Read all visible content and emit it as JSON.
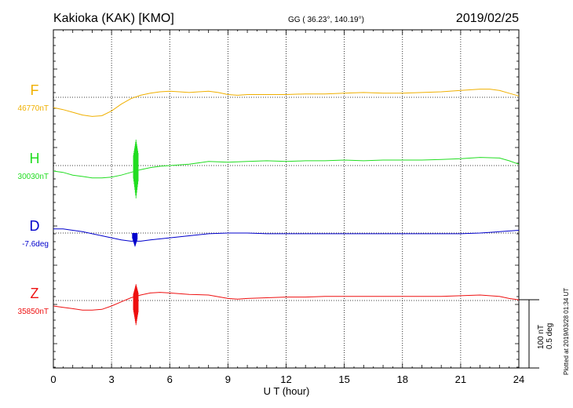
{
  "header": {
    "station": "Kakioka (KAK)  [KMO]",
    "coords": "GG ( 36.23°, 140.19°)",
    "date": "2019/02/25"
  },
  "chart_data": {
    "type": "line",
    "xlabel": "U T (hour)",
    "xlim": [
      0,
      24
    ],
    "xticks": [
      "0",
      "3",
      "6",
      "9",
      "12",
      "15",
      "18",
      "21",
      "24"
    ],
    "scale_labels": [
      "100 nT",
      "0.5 deg"
    ],
    "plotted_note": "Plotted at 2019/03/28 01:34 UT",
    "grid": true,
    "series": [
      {
        "name": "F",
        "baseline": "46770nT",
        "color": "#f0b000",
        "unit": "nT",
        "points": [
          [
            0,
            -15
          ],
          [
            0.5,
            -18
          ],
          [
            1,
            -22
          ],
          [
            1.5,
            -26
          ],
          [
            2,
            -28
          ],
          [
            2.5,
            -27
          ],
          [
            3,
            -20
          ],
          [
            3.5,
            -10
          ],
          [
            4,
            -2
          ],
          [
            4.5,
            3
          ],
          [
            5,
            6
          ],
          [
            5.5,
            8
          ],
          [
            6,
            9
          ],
          [
            6.5,
            8
          ],
          [
            7,
            7
          ],
          [
            7.5,
            8
          ],
          [
            8,
            9
          ],
          [
            8.5,
            7
          ],
          [
            9,
            4
          ],
          [
            9.5,
            3
          ],
          [
            10,
            4
          ],
          [
            10.5,
            4
          ],
          [
            11,
            4
          ],
          [
            12,
            4
          ],
          [
            13,
            5
          ],
          [
            14,
            5
          ],
          [
            15,
            6
          ],
          [
            16,
            7
          ],
          [
            17,
            6
          ],
          [
            18,
            6
          ],
          [
            19,
            7
          ],
          [
            20,
            8
          ],
          [
            21,
            10
          ],
          [
            22,
            12
          ],
          [
            22.5,
            12
          ],
          [
            23,
            10
          ],
          [
            23.5,
            6
          ],
          [
            24,
            2
          ]
        ],
        "spikes": []
      },
      {
        "name": "H",
        "baseline": "30030nT",
        "color": "#22dd22",
        "unit": "nT",
        "points": [
          [
            0,
            -8
          ],
          [
            0.5,
            -10
          ],
          [
            1,
            -14
          ],
          [
            1.5,
            -16
          ],
          [
            2,
            -18
          ],
          [
            2.5,
            -18
          ],
          [
            3,
            -17
          ],
          [
            3.5,
            -14
          ],
          [
            4,
            -10
          ],
          [
            4.5,
            -6
          ],
          [
            5,
            -3
          ],
          [
            5.5,
            -1
          ],
          [
            6,
            0
          ],
          [
            7,
            2
          ],
          [
            8,
            6
          ],
          [
            9,
            5
          ],
          [
            10,
            6
          ],
          [
            11,
            7
          ],
          [
            12,
            6
          ],
          [
            13,
            7
          ],
          [
            14,
            7
          ],
          [
            15,
            8
          ],
          [
            16,
            7
          ],
          [
            17,
            8
          ],
          [
            18,
            8
          ],
          [
            19,
            8
          ],
          [
            20,
            9
          ],
          [
            21,
            10
          ],
          [
            22,
            12
          ],
          [
            23,
            11
          ],
          [
            23.5,
            7
          ],
          [
            24,
            2
          ]
        ],
        "spikes": [
          {
            "x": 4.25,
            "lo": -48,
            "hi": 38
          }
        ]
      },
      {
        "name": "D",
        "baseline": "-7.6deg",
        "color": "#0000cc",
        "unit": "nT",
        "points": [
          [
            0,
            6
          ],
          [
            0.5,
            6
          ],
          [
            1,
            4
          ],
          [
            1.5,
            2
          ],
          [
            2,
            -1
          ],
          [
            2.5,
            -4
          ],
          [
            3,
            -7
          ],
          [
            3.5,
            -10
          ],
          [
            4,
            -12
          ],
          [
            4.5,
            -12
          ],
          [
            5,
            -10
          ],
          [
            6,
            -7
          ],
          [
            7,
            -4
          ],
          [
            8,
            -1
          ],
          [
            9,
            0
          ],
          [
            10,
            0
          ],
          [
            11,
            -1
          ],
          [
            12,
            -1
          ],
          [
            13,
            -1
          ],
          [
            14,
            -1
          ],
          [
            15,
            -1
          ],
          [
            16,
            -1
          ],
          [
            17,
            -1
          ],
          [
            18,
            -1
          ],
          [
            19,
            -1
          ],
          [
            20,
            -1
          ],
          [
            21,
            -1
          ],
          [
            22,
            0
          ],
          [
            23,
            2
          ],
          [
            24,
            4
          ]
        ],
        "spikes": [
          {
            "x": 4.2,
            "lo": -20,
            "hi": 0
          }
        ]
      },
      {
        "name": "Z",
        "baseline": "35850nT",
        "color": "#ee1111",
        "unit": "nT",
        "points": [
          [
            0,
            -8
          ],
          [
            0.5,
            -10
          ],
          [
            1,
            -12
          ],
          [
            1.5,
            -14
          ],
          [
            2,
            -14
          ],
          [
            2.5,
            -13
          ],
          [
            3,
            -8
          ],
          [
            3.5,
            -2
          ],
          [
            4,
            4
          ],
          [
            4.5,
            8
          ],
          [
            5,
            11
          ],
          [
            5.5,
            12
          ],
          [
            6,
            11
          ],
          [
            7,
            9
          ],
          [
            8,
            8
          ],
          [
            9,
            3
          ],
          [
            9.5,
            2
          ],
          [
            10,
            3
          ],
          [
            11,
            4
          ],
          [
            12,
            5
          ],
          [
            13,
            5
          ],
          [
            14,
            6
          ],
          [
            15,
            6
          ],
          [
            16,
            6
          ],
          [
            17,
            6
          ],
          [
            18,
            6
          ],
          [
            19,
            6
          ],
          [
            20,
            6
          ],
          [
            21,
            7
          ],
          [
            22,
            8
          ],
          [
            23,
            6
          ],
          [
            23.5,
            3
          ],
          [
            24,
            1
          ]
        ],
        "spikes": [
          {
            "x": 4.25,
            "lo": -36,
            "hi": 24
          }
        ]
      }
    ]
  }
}
